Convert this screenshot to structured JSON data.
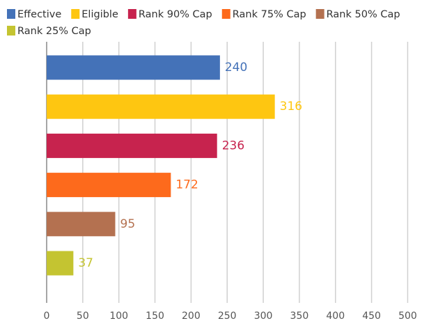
{
  "chart_data": {
    "type": "bar",
    "orientation": "horizontal",
    "series": [
      {
        "name": "Effective",
        "color": "#4472b8",
        "values": [
          240
        ]
      },
      {
        "name": "Eligible",
        "color": "#fec611",
        "values": [
          316
        ]
      },
      {
        "name": "Rank 90% Cap",
        "color": "#c7234e",
        "values": [
          236
        ]
      },
      {
        "name": "Rank 75% Cap",
        "color": "#fd6a1c",
        "values": [
          172
        ]
      },
      {
        "name": "Rank 50% Cap",
        "color": "#b47150",
        "values": [
          95
        ]
      },
      {
        "name": "Rank 25% Cap",
        "color": "#c4c431",
        "values": [
          37
        ]
      }
    ],
    "xlim": [
      0,
      542
    ],
    "xticks": [
      0,
      50,
      100,
      150,
      200,
      250,
      300,
      350,
      400,
      450,
      500
    ],
    "grid": true,
    "data_labels": true,
    "legend": "top"
  }
}
